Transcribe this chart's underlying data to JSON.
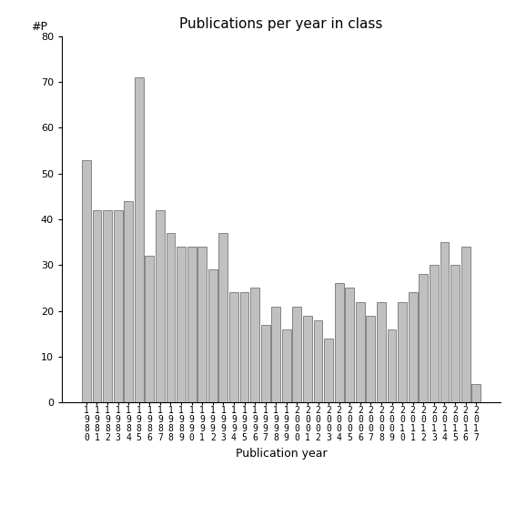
{
  "title": "Publications per year in class",
  "xlabel": "Publication year",
  "ylabel": "#P",
  "years": [
    "1980",
    "1981",
    "1982",
    "1983",
    "1984",
    "1985",
    "1986",
    "1987",
    "1988",
    "1989",
    "1990",
    "1991",
    "1992",
    "1993",
    "1994",
    "1995",
    "1996",
    "1997",
    "1998",
    "1999",
    "2000",
    "2001",
    "2002",
    "2003",
    "2004",
    "2005",
    "2006",
    "2007",
    "2008",
    "2009",
    "2010",
    "2011",
    "2012",
    "2013",
    "2014",
    "2015",
    "2016",
    "2017"
  ],
  "values": [
    53,
    42,
    42,
    42,
    44,
    71,
    32,
    42,
    37,
    34,
    34,
    34,
    29,
    37,
    24,
    24,
    25,
    17,
    21,
    16,
    21,
    19,
    18,
    14,
    26,
    25,
    22,
    19,
    22,
    16,
    22,
    24,
    28,
    30,
    35,
    30,
    34,
    4
  ],
  "ylim": [
    0,
    80
  ],
  "yticks": [
    0,
    10,
    20,
    30,
    40,
    50,
    60,
    70,
    80
  ],
  "bar_color": "#c0c0c0",
  "bar_edgecolor": "#606060",
  "background_color": "#ffffff",
  "title_fontsize": 11,
  "axis_label_fontsize": 9,
  "tick_fontsize": 8,
  "ylabel_above_fontsize": 9
}
